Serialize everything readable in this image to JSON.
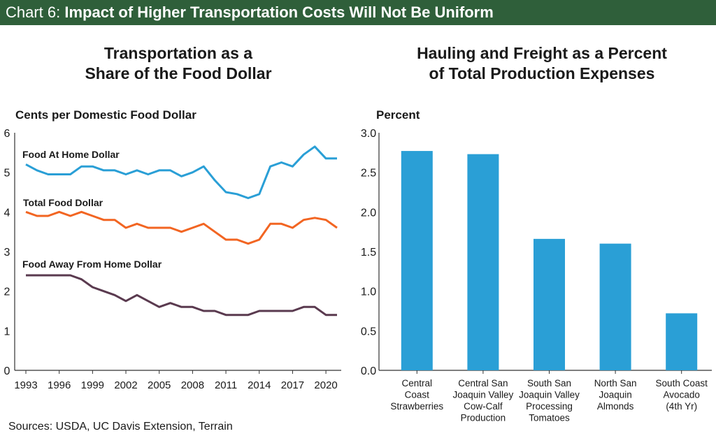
{
  "banner": {
    "prefix": "Chart 6: ",
    "title": "Impact of Higher Transportation Costs Will Not Be Uniform"
  },
  "source": "Sources: USDA, UC Davis Extension, Terrain",
  "colors": {
    "banner": "#2f5f3a",
    "food_at_home": "#2a9fd6",
    "total_food": "#f26522",
    "food_away": "#5a3a4f",
    "bar": "#2a9fd6"
  },
  "chart_data": [
    {
      "type": "line",
      "title_lines": [
        "Transportation as a",
        "Share of the Food Dollar"
      ],
      "ylabel": "Cents per Domestic Food Dollar",
      "xlim": [
        1993,
        2021
      ],
      "ylim": [
        0,
        6
      ],
      "xticks": [
        1993,
        1996,
        1999,
        2002,
        2005,
        2008,
        2011,
        2014,
        2017,
        2020
      ],
      "yticks": [
        0,
        1,
        2,
        3,
        4,
        5,
        6
      ],
      "x": [
        1993,
        1994,
        1995,
        1996,
        1997,
        1998,
        1999,
        2000,
        2001,
        2002,
        2003,
        2004,
        2005,
        2006,
        2007,
        2008,
        2009,
        2010,
        2011,
        2012,
        2013,
        2014,
        2015,
        2016,
        2017,
        2018,
        2019,
        2020,
        2021
      ],
      "series": [
        {
          "name": "Food At Home Dollar",
          "label": "Food At Home Dollar",
          "color": "#2a9fd6",
          "values": [
            5.2,
            5.05,
            4.95,
            4.95,
            4.95,
            5.15,
            5.15,
            5.05,
            5.05,
            4.95,
            5.05,
            4.95,
            5.05,
            5.05,
            4.9,
            5.0,
            5.15,
            4.8,
            4.5,
            4.45,
            4.35,
            4.45,
            5.15,
            5.25,
            5.15,
            5.45,
            5.65,
            5.35,
            5.35
          ]
        },
        {
          "name": "Total Food Dollar",
          "label": "Total Food Dollar",
          "color": "#f26522",
          "values": [
            4.0,
            3.9,
            3.9,
            4.0,
            3.9,
            4.0,
            3.9,
            3.8,
            3.8,
            3.6,
            3.7,
            3.6,
            3.6,
            3.6,
            3.5,
            3.6,
            3.7,
            3.5,
            3.3,
            3.3,
            3.2,
            3.3,
            3.7,
            3.7,
            3.6,
            3.8,
            3.85,
            3.8,
            3.6
          ]
        },
        {
          "name": "Food Away From Home Dollar",
          "label": "Food Away From Home Dollar",
          "color": "#5a3a4f",
          "values": [
            2.4,
            2.4,
            2.4,
            2.4,
            2.4,
            2.3,
            2.1,
            2.0,
            1.9,
            1.75,
            1.9,
            1.75,
            1.6,
            1.7,
            1.6,
            1.6,
            1.5,
            1.5,
            1.4,
            1.4,
            1.4,
            1.5,
            1.5,
            1.5,
            1.5,
            1.6,
            1.6,
            1.4,
            1.4
          ]
        }
      ]
    },
    {
      "type": "bar",
      "title_lines": [
        "Hauling and Freight as a Percent",
        "of Total Production Expenses"
      ],
      "ylabel": "Percent",
      "ylim": [
        0,
        3
      ],
      "yticks": [
        "0.0",
        "0.5",
        "1.0",
        "1.5",
        "2.0",
        "2.5",
        "3.0"
      ],
      "categories": [
        [
          "Central",
          "Coast",
          "Strawberries"
        ],
        [
          "Central San",
          "Joaquin Valley",
          "Cow-Calf",
          "Production"
        ],
        [
          "South San",
          "Joaquin Valley",
          "Processing",
          "Tomatoes"
        ],
        [
          "North San",
          "Joaquin",
          "Almonds"
        ],
        [
          "South Coast",
          "Avocado",
          "(4th Yr)"
        ]
      ],
      "values": [
        2.77,
        2.73,
        1.66,
        1.6,
        0.72
      ],
      "color": "#2a9fd6"
    }
  ]
}
